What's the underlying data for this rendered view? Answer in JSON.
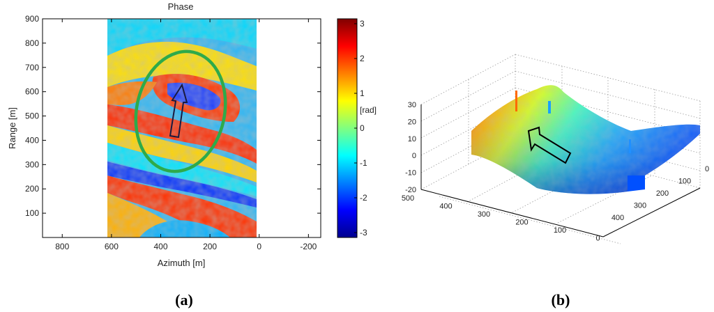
{
  "panels": [
    {
      "label": "(a)"
    },
    {
      "label": "(b)"
    }
  ],
  "chart_data": [
    {
      "type": "heatmap",
      "title": "Phase",
      "xlabel": "Azimuth [m]",
      "ylabel": "Range [m]",
      "x_reversed": true,
      "xlim": [
        -250,
        880
      ],
      "ylim": [
        0,
        900
      ],
      "x_ticks": [
        "800",
        "600",
        "400",
        "200",
        "0",
        "-200"
      ],
      "y_ticks": [
        "900",
        "800",
        "700",
        "600",
        "500",
        "400",
        "300",
        "200",
        "100"
      ],
      "x_tick_values": [
        800,
        600,
        400,
        200,
        0,
        -200
      ],
      "y_tick_values": [
        900,
        800,
        700,
        600,
        500,
        400,
        300,
        200,
        100
      ],
      "data_extent_x": [
        0,
        600
      ],
      "colorbar": {
        "label": "[rad]",
        "range": [
          -3.14,
          3.14
        ],
        "ticks": [
          "3",
          "2",
          "1",
          "0",
          "-1",
          "-2",
          "-3"
        ],
        "tick_values": [
          3,
          2,
          1,
          0,
          -1,
          -2,
          -3
        ],
        "colormap": "jet"
      },
      "annotations": [
        {
          "type": "ellipse",
          "color": "#2eaa4a",
          "center": [
            265,
            500
          ],
          "radius": [
            195,
            265
          ]
        },
        {
          "type": "arrow",
          "color": "#1a1a40",
          "from": [
            310,
            420
          ],
          "to": [
            300,
            640
          ]
        }
      ]
    },
    {
      "type": "surface",
      "z_ticks": [
        "30",
        "20",
        "10",
        "0",
        "-10",
        "-20"
      ],
      "z_tick_values": [
        30,
        20,
        10,
        0,
        -10,
        -20
      ],
      "x_ticks": [
        "500",
        "400",
        "300",
        "200",
        "100",
        "0"
      ],
      "y_ticks": [
        "0",
        "100",
        "200",
        "300",
        "400"
      ],
      "colormap": "jet",
      "annotations": [
        {
          "type": "arrow",
          "color": "#000000"
        }
      ]
    }
  ]
}
